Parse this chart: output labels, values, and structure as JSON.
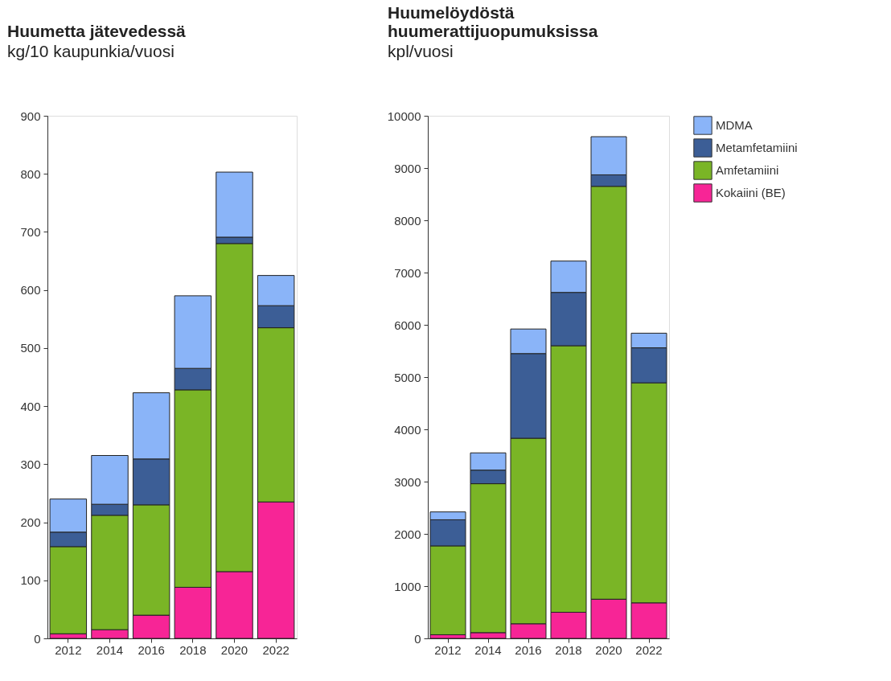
{
  "chart_data": [
    {
      "type": "bar",
      "title": "Huumetta jätevedessä",
      "subtitle": "kg/10 kaupunkia/vuosi",
      "categories": [
        "2012",
        "2014",
        "2016",
        "2018",
        "2020",
        "2022"
      ],
      "stacked": true,
      "ylim": [
        0,
        900
      ],
      "yticks": [
        0,
        100,
        200,
        300,
        400,
        500,
        600,
        700,
        800,
        900
      ],
      "legend": false,
      "series": [
        {
          "color": "#f72596",
          "values": [
            8,
            15,
            40,
            88,
            115,
            235
          ]
        },
        {
          "color": "#7ab526",
          "values": [
            150,
            197,
            190,
            340,
            565,
            300
          ]
        },
        {
          "color": "#3c5e96",
          "values": [
            25,
            19,
            79,
            37,
            11,
            38
          ]
        },
        {
          "color": "#8ab4f8",
          "values": [
            57,
            84,
            114,
            125,
            112,
            52
          ]
        }
      ]
    },
    {
      "type": "bar",
      "title": "Huumelöydöstä huumerattijuopumuksissa",
      "subtitle": "kpl/vuosi",
      "categories": [
        "2012",
        "2014",
        "2016",
        "2018",
        "2020",
        "2022"
      ],
      "stacked": true,
      "ylim": [
        0,
        10000
      ],
      "yticks": [
        0,
        1000,
        2000,
        3000,
        4000,
        5000,
        6000,
        7000,
        8000,
        9000,
        10000
      ],
      "legend": "right",
      "series": [
        {
          "name": "Kokaiini (BE)",
          "color": "#f72596",
          "values": [
            70,
            110,
            280,
            500,
            750,
            680
          ]
        },
        {
          "name": "Amfetamiini",
          "color": "#7ab526",
          "values": [
            1700,
            2850,
            3550,
            5100,
            7900,
            4210
          ]
        },
        {
          "name": "Metamfetamiini",
          "color": "#3c5e96",
          "values": [
            500,
            260,
            1620,
            1020,
            220,
            670
          ]
        },
        {
          "name": "MDMA",
          "color": "#8ab4f8",
          "values": [
            150,
            330,
            470,
            600,
            730,
            280
          ]
        }
      ]
    }
  ]
}
